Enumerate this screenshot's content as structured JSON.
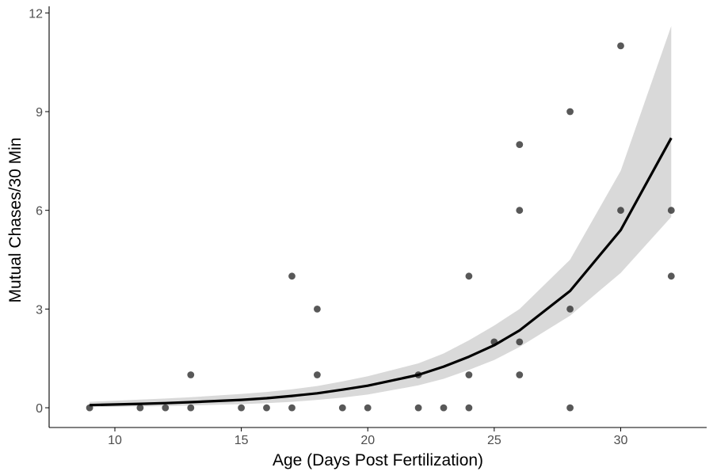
{
  "colors": {
    "background": "#ffffff",
    "axis": "#000000",
    "tick_text": "#4d4d4d",
    "point": "#333333",
    "line": "#000000",
    "ribbon": "#d9d9d9"
  },
  "chart_data": {
    "type": "scatter",
    "title": "",
    "xlabel": "Age (Days Post Fertilization)",
    "ylabel": "Mutual Chases/30 Min",
    "xlim": [
      7.4,
      33.4
    ],
    "ylim": [
      -0.6,
      12.2
    ],
    "xticks": [
      10,
      15,
      20,
      25,
      30
    ],
    "yticks": [
      0,
      3,
      6,
      9,
      12
    ],
    "grid": false,
    "legend": "none",
    "points": [
      {
        "x": 9,
        "y": 0
      },
      {
        "x": 11,
        "y": 0
      },
      {
        "x": 12,
        "y": 0
      },
      {
        "x": 13,
        "y": 0
      },
      {
        "x": 13,
        "y": 1
      },
      {
        "x": 15,
        "y": 0
      },
      {
        "x": 16,
        "y": 0
      },
      {
        "x": 17,
        "y": 0
      },
      {
        "x": 17,
        "y": 4
      },
      {
        "x": 18,
        "y": 1
      },
      {
        "x": 18,
        "y": 3
      },
      {
        "x": 19,
        "y": 0
      },
      {
        "x": 20,
        "y": 0
      },
      {
        "x": 22,
        "y": 0
      },
      {
        "x": 22,
        "y": 1
      },
      {
        "x": 23,
        "y": 0
      },
      {
        "x": 24,
        "y": 0
      },
      {
        "x": 24,
        "y": 1
      },
      {
        "x": 24,
        "y": 4
      },
      {
        "x": 25,
        "y": 2
      },
      {
        "x": 26,
        "y": 1
      },
      {
        "x": 26,
        "y": 2
      },
      {
        "x": 26,
        "y": 6
      },
      {
        "x": 26,
        "y": 8
      },
      {
        "x": 28,
        "y": 0
      },
      {
        "x": 28,
        "y": 3
      },
      {
        "x": 28,
        "y": 9
      },
      {
        "x": 30,
        "y": 6
      },
      {
        "x": 30,
        "y": 11
      },
      {
        "x": 32,
        "y": 4
      },
      {
        "x": 32,
        "y": 6
      }
    ],
    "fit": {
      "x": [
        9,
        11,
        12,
        13,
        15,
        16,
        17,
        18,
        19,
        20,
        22,
        23,
        24,
        25,
        26,
        28,
        30,
        32
      ],
      "y": [
        0.08,
        0.12,
        0.14,
        0.17,
        0.24,
        0.29,
        0.36,
        0.44,
        0.55,
        0.67,
        1.0,
        1.25,
        1.55,
        1.9,
        2.35,
        3.55,
        5.4,
        8.2
      ],
      "lower": [
        0.02,
        0.04,
        0.05,
        0.07,
        0.11,
        0.14,
        0.18,
        0.24,
        0.31,
        0.4,
        0.68,
        0.88,
        1.15,
        1.45,
        1.85,
        2.8,
        4.1,
        5.8
      ],
      "upper": [
        0.18,
        0.25,
        0.28,
        0.32,
        0.42,
        0.48,
        0.56,
        0.66,
        0.8,
        0.96,
        1.35,
        1.65,
        2.05,
        2.5,
        3.0,
        4.5,
        7.2,
        11.6
      ]
    }
  }
}
